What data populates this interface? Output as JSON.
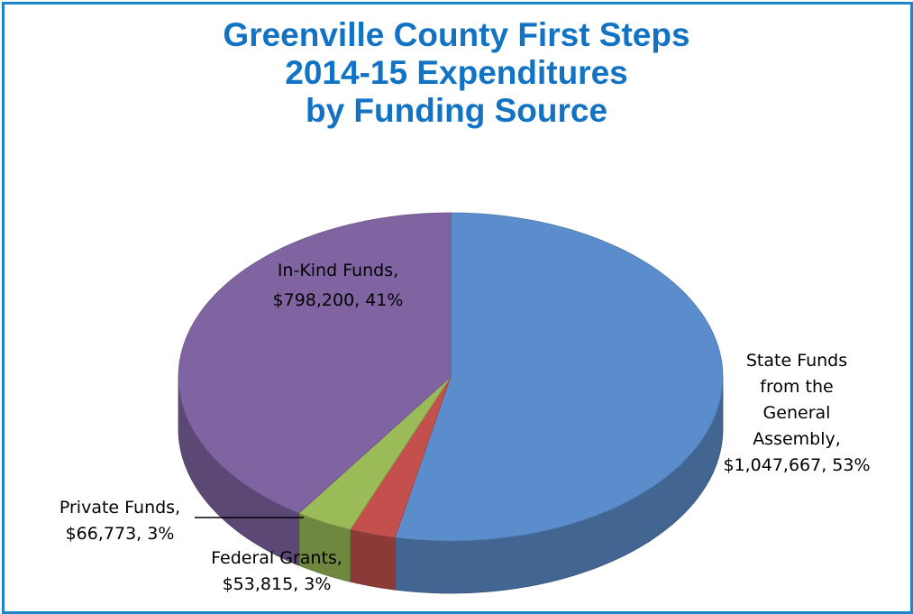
{
  "chart_data": {
    "type": "pie",
    "title_lines": [
      "Greenville County First Steps",
      "2014-15 Expenditures",
      "by Funding Source"
    ],
    "slices": [
      {
        "name": "State Funds from the General Assembly",
        "value": 1047667,
        "percent": 53,
        "label_lines": [
          "State Funds",
          "from the",
          "General",
          "Assembly,",
          "$1,047,667, 53%"
        ],
        "color": "#5b8ccb"
      },
      {
        "name": "Federal Grants",
        "value": 53815,
        "percent": 3,
        "label_lines": [
          "Federal Grants,",
          "$53,815, 3%"
        ],
        "color": "#c3504d"
      },
      {
        "name": "Private Funds",
        "value": 66773,
        "percent": 3,
        "label_lines": [
          "Private Funds,",
          "$66,773, 3%"
        ],
        "color": "#9bbb59"
      },
      {
        "name": "In-Kind Funds",
        "value": 798200,
        "percent": 41,
        "label_lines": [
          "In-Kind Funds,",
          "$798,200, 41%"
        ],
        "color": "#8064a2"
      }
    ],
    "legend": "none"
  }
}
